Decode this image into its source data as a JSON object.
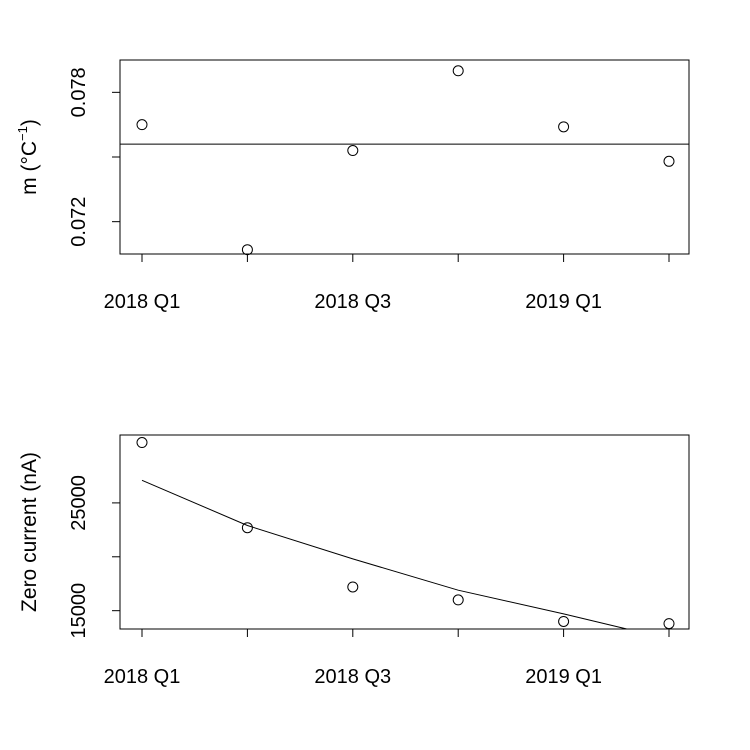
{
  "chart_data": [
    {
      "type": "scatter",
      "title": "",
      "xlabel": "",
      "ylabel_text": "m  (°C",
      "ylabel_sup": "−1",
      "ylabel_close": ")",
      "x_tick_labels": [
        "2018 Q1",
        "",
        "2018 Q3",
        "",
        "2019 Q1",
        ""
      ],
      "y_ticks": [
        0.072,
        0.075,
        0.078
      ],
      "y_tick_labels": [
        "0.072",
        "",
        "0.078"
      ],
      "ylim": [
        0.0705,
        0.0795
      ],
      "points": [
        {
          "x": 1,
          "y": 0.0765
        },
        {
          "x": 2,
          "y": 0.0707
        },
        {
          "x": 3,
          "y": 0.0753
        },
        {
          "x": 4,
          "y": 0.079
        },
        {
          "x": 5,
          "y": 0.0764
        },
        {
          "x": 6,
          "y": 0.0748
        }
      ],
      "fit_line": {
        "type": "horizontal",
        "y": 0.0756
      },
      "grid": false
    },
    {
      "type": "scatter",
      "title": "",
      "xlabel": "",
      "ylabel_text": "Zero current  (nA)",
      "x_tick_labels": [
        "2018 Q1",
        "",
        "2018 Q3",
        "",
        "2019 Q1",
        ""
      ],
      "y_ticks": [
        15000,
        20000,
        25000
      ],
      "y_tick_labels": [
        "15000",
        "",
        "25000"
      ],
      "ylim": [
        13300,
        31300
      ],
      "points": [
        {
          "x": 1,
          "y": 30600
        },
        {
          "x": 2,
          "y": 22700
        },
        {
          "x": 3,
          "y": 17200
        },
        {
          "x": 4,
          "y": 16000
        },
        {
          "x": 5,
          "y": 14000
        },
        {
          "x": 6,
          "y": 13800
        }
      ],
      "fit_curve": {
        "x": [
          1,
          2,
          3,
          4,
          5,
          5.6
        ],
        "y": [
          27100,
          22900,
          19800,
          16900,
          14700,
          13300
        ]
      },
      "grid": false
    }
  ]
}
